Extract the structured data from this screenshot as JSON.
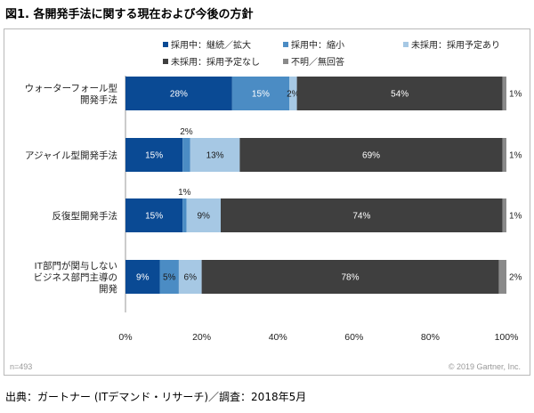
{
  "figure_title": "図1. 各開発手法に関する現在および今後の方針",
  "footer": "出典：ガートナー (ITデマンド・リサーチ)／調査：2018年5月",
  "note": "n=493",
  "copyright": "© 2019 Gartner, Inc.",
  "colors": [
    "#0a4a94",
    "#4b8cc4",
    "#a6c8e4",
    "#3f3f3f",
    "#8a8a8a"
  ],
  "chart_data": {
    "type": "bar",
    "orientation": "horizontal",
    "stacked": true,
    "categories": [
      [
        "ウォーターフォール型",
        "開発手法"
      ],
      [
        "アジャイル型開発手法"
      ],
      [
        "反復型開発手法"
      ],
      [
        "IT部門が関与しない",
        "ビジネス部門主導の",
        "開発"
      ]
    ],
    "series": [
      {
        "name": "採用中：継続／拡大",
        "values": [
          28,
          15,
          15,
          9
        ]
      },
      {
        "name": "採用中：縮小",
        "values": [
          15,
          2,
          1,
          5
        ]
      },
      {
        "name": "未採用：採用予定あり",
        "values": [
          2,
          13,
          9,
          6
        ]
      },
      {
        "name": "未採用：採用予定なし",
        "values": [
          54,
          69,
          74,
          78
        ]
      },
      {
        "name": "不明／無回答",
        "values": [
          1,
          1,
          1,
          2
        ]
      }
    ],
    "x_ticks": [
      "0%",
      "20%",
      "40%",
      "60%",
      "80%",
      "100%"
    ],
    "xlim": [
      0,
      100
    ],
    "legend_position": "top",
    "grid": false
  }
}
